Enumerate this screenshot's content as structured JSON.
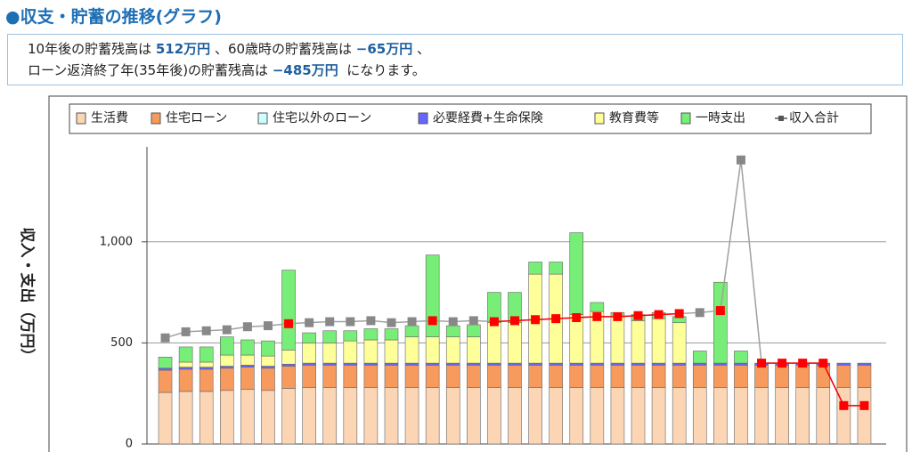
{
  "header": {
    "title": "●収支・貯蓄の推移(グラフ)"
  },
  "summary": {
    "lines": [
      [
        {
          "text": "10年後の貯蓄残高は "
        },
        {
          "text": "512万円",
          "bold": true
        },
        {
          "text": " 、60歳時の貯蓄残高は "
        },
        {
          "text": "−65万円",
          "bold": true
        },
        {
          "text": " 、"
        }
      ],
      [
        {
          "text": "ローン返済終了年(35年後)の貯蓄残高は "
        },
        {
          "text": "−485万円",
          "bold": true
        },
        {
          "text": "  になります。"
        }
      ]
    ]
  },
  "chart_data": {
    "type": "bar",
    "stacked": true,
    "y_label": "収入・支出（万円）",
    "categories": [
      null,
      null,
      null,
      null,
      null,
      null,
      null,
      null,
      null,
      null,
      null,
      null,
      null,
      null,
      null,
      null,
      null,
      null,
      null,
      null,
      null,
      null,
      null,
      null,
      null,
      null,
      null,
      null,
      null,
      null,
      null,
      null,
      null,
      null,
      null
    ],
    "ylim": [
      0,
      1470
    ],
    "yticks": [
      0,
      500,
      {
        "value": 1000,
        "label": "1,000"
      }
    ],
    "grid": true,
    "legend": "top",
    "series": [
      {
        "name": "生活費",
        "color": "#fcd5b5",
        "values": [
          255,
          260,
          260,
          265,
          270,
          265,
          275,
          280,
          280,
          280,
          280,
          280,
          280,
          280,
          280,
          280,
          280,
          280,
          280,
          280,
          280,
          280,
          280,
          280,
          280,
          280,
          280,
          280,
          280,
          280,
          280,
          280,
          280,
          280,
          280
        ]
      },
      {
        "name": "住宅ローン",
        "color": "#f79a5e",
        "values": [
          110,
          110,
          110,
          110,
          110,
          110,
          110,
          110,
          110,
          110,
          110,
          110,
          110,
          110,
          110,
          110,
          110,
          110,
          110,
          110,
          110,
          110,
          110,
          110,
          110,
          110,
          110,
          110,
          110,
          110,
          110,
          110,
          110,
          110,
          110
        ]
      },
      {
        "name": "住宅以外のローン",
        "color": "#ccffff",
        "values": [
          0,
          0,
          0,
          0,
          0,
          0,
          0,
          0,
          0,
          0,
          0,
          0,
          0,
          0,
          0,
          0,
          0,
          0,
          0,
          0,
          0,
          0,
          0,
          0,
          0,
          0,
          0,
          0,
          0,
          0,
          0,
          0,
          0,
          0,
          0
        ]
      },
      {
        "name": "必要経費+生命保険",
        "color": "#6666ff",
        "values": [
          10,
          10,
          10,
          10,
          10,
          10,
          10,
          10,
          10,
          10,
          10,
          10,
          10,
          10,
          10,
          10,
          10,
          10,
          10,
          10,
          10,
          10,
          10,
          10,
          10,
          10,
          10,
          10,
          10,
          10,
          10,
          10,
          10,
          10,
          10
        ]
      },
      {
        "name": "教育費等",
        "color": "#ffff99",
        "values": [
          0,
          25,
          25,
          55,
          50,
          50,
          70,
          100,
          100,
          110,
          115,
          115,
          130,
          130,
          130,
          130,
          200,
          200,
          440,
          440,
          240,
          255,
          230,
          210,
          220,
          200,
          0,
          0,
          0,
          0,
          0,
          0,
          0,
          0,
          0
        ]
      },
      {
        "name": "一時支出",
        "color": "#77ee77",
        "values": [
          55,
          75,
          75,
          90,
          75,
          75,
          395,
          50,
          60,
          50,
          55,
          55,
          55,
          405,
          55,
          60,
          150,
          150,
          60,
          60,
          405,
          45,
          20,
          30,
          30,
          30,
          60,
          400,
          60,
          0,
          0,
          0,
          0,
          0,
          0
        ]
      },
      {
        "name": "収入合計",
        "type": "line",
        "color": "#a0a0a0",
        "marker_colors": [
          "#888888",
          "#888888",
          "#888888",
          "#888888",
          "#888888",
          "#888888",
          "#ff0000",
          "#888888",
          "#888888",
          "#888888",
          "#888888",
          "#888888",
          "#888888",
          "#ff0000",
          "#888888",
          "#888888",
          "#ff0000",
          "#ff0000",
          "#ff0000",
          "#ff0000",
          "#ff0000",
          "#ff0000",
          "#ff0000",
          "#ff0000",
          "#ff0000",
          "#ff0000",
          "#888888",
          "#ff0000",
          "#888888",
          "#ff0000",
          "#ff0000",
          "#ff0000",
          "#ff0000",
          "#ff0000",
          "#ff0000"
        ],
        "values": [
          525,
          555,
          560,
          565,
          580,
          585,
          595,
          600,
          605,
          605,
          610,
          600,
          605,
          610,
          605,
          610,
          605,
          610,
          615,
          620,
          625,
          630,
          630,
          635,
          640,
          645,
          650,
          660,
          1405,
          400,
          400,
          400,
          400,
          190,
          190
        ]
      }
    ]
  }
}
